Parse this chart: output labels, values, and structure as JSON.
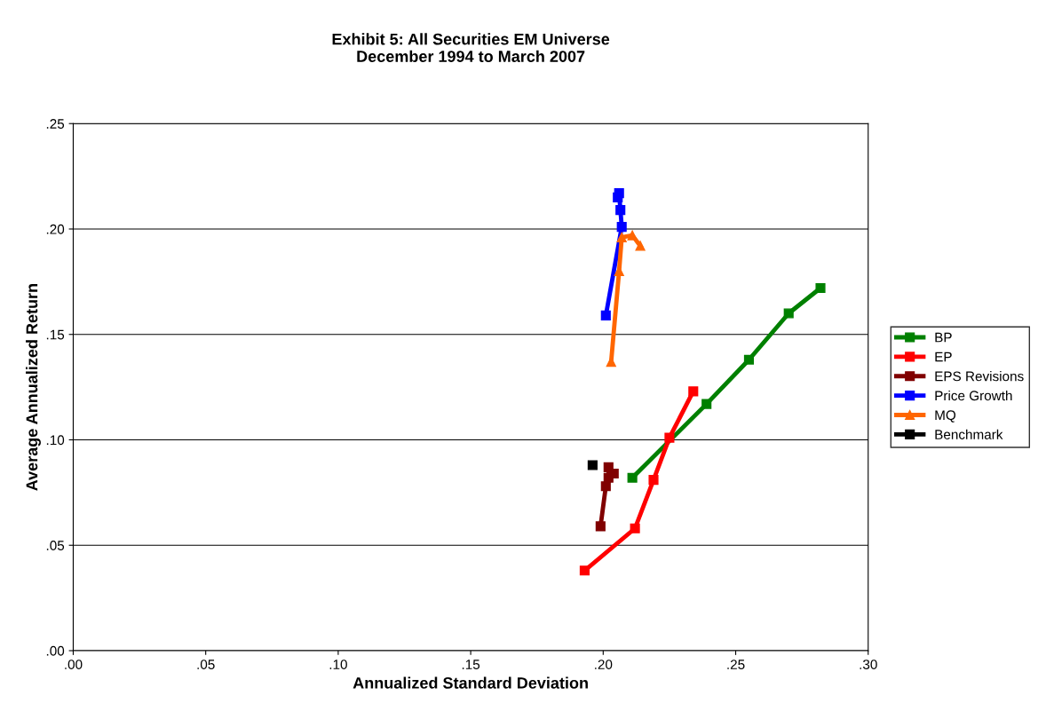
{
  "chart_data": {
    "type": "line",
    "title": "Exhibit 5: All Securities EM Universe\nDecember 1994 to March 2007",
    "xlabel": "Annualized Standard Deviation",
    "ylabel": "Average Annualized Return",
    "xlim": [
      0,
      0.3
    ],
    "xticks": [
      {
        "value": 0,
        "label": ".00"
      },
      {
        "value": 0.05,
        "label": ".05"
      },
      {
        "value": 0.1,
        "label": ".10"
      },
      {
        "value": 0.15,
        "label": ".15"
      },
      {
        "value": 0.2,
        "label": ".20"
      },
      {
        "value": 0.25,
        "label": ".25"
      },
      {
        "value": 0.3,
        "label": ".30"
      }
    ],
    "ylim": [
      0,
      0.25
    ],
    "yticks": [
      {
        "value": 0,
        "label": ".00"
      },
      {
        "value": 0.05,
        "label": ".05"
      },
      {
        "value": 0.1,
        "label": ".10"
      },
      {
        "value": 0.15,
        "label": ".15"
      },
      {
        "value": 0.2,
        "label": ".20"
      },
      {
        "value": 0.25,
        "label": ".25"
      }
    ],
    "grid": "y",
    "legend": "right",
    "marker": "square",
    "line_style": "solid",
    "series": [
      {
        "name": "BP",
        "color": "#008000",
        "x": [
          0.211,
          0.239,
          0.255,
          0.27,
          0.282
        ],
        "values": [
          0.082,
          0.117,
          0.138,
          0.16,
          0.172
        ]
      },
      {
        "name": "EP",
        "color": "#ff0000",
        "x": [
          0.193,
          0.212,
          0.219,
          0.225,
          0.234
        ],
        "values": [
          0.038,
          0.058,
          0.081,
          0.101,
          0.123
        ]
      },
      {
        "name": "EPS Revisions",
        "color": "#800000",
        "x": [
          0.199,
          0.201,
          0.202,
          0.202,
          0.204
        ],
        "values": [
          0.059,
          0.078,
          0.082,
          0.087,
          0.084
        ]
      },
      {
        "name": "Price Growth",
        "color": "#0000ff",
        "x": [
          0.201,
          0.207,
          0.2065,
          0.206,
          0.2055
        ],
        "values": [
          0.159,
          0.201,
          0.209,
          0.217,
          0.215
        ]
      },
      {
        "name": "MQ",
        "color": "#ff6600",
        "marker": "triangle",
        "x": [
          0.203,
          0.206,
          0.207,
          0.211,
          0.214
        ],
        "values": [
          0.137,
          0.18,
          0.196,
          0.197,
          0.192
        ]
      },
      {
        "name": "Benchmark",
        "color": "#000000",
        "x": [
          0.196
        ],
        "values": [
          0.088
        ]
      }
    ]
  }
}
